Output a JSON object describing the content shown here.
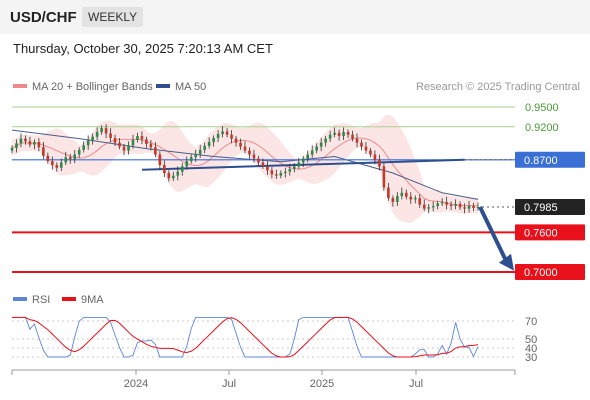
{
  "header": {
    "symbol": "USD/CHF",
    "timeframe": "WEEKLY",
    "timestamp": "Thursday, October 30, 2025 7:20:13 AM CET"
  },
  "legend": {
    "ma20": "MA 20 + Bollinger Bands",
    "ma50": "MA 50",
    "copyright": "Research © 2025 Trading Central",
    "rsi": "RSI",
    "ma9": "9MA"
  },
  "colors": {
    "ma20": "#f08a8a",
    "bands": "#fadcdc",
    "ma50": "#4a5c8a",
    "trend": "#2e4f8f",
    "support": "#e8101a",
    "resistance_green": "#a9d18e",
    "pivot_blue": "#3a6fd6",
    "rsi": "#5b86d8",
    "up": "#2a8a4a",
    "down": "#c0392b"
  },
  "chart_data": [
    {
      "type": "candlestick",
      "ylim": [
        0.68,
        0.99
      ],
      "x_ticks": [
        "2024",
        "Jul",
        "2025",
        "Jul"
      ],
      "levels": [
        {
          "value": 0.95,
          "label": "0.9500",
          "style": "green"
        },
        {
          "value": 0.92,
          "label": "0.9200",
          "style": "green"
        },
        {
          "value": 0.87,
          "label": "0.8700",
          "style": "blue"
        },
        {
          "value": 0.7985,
          "label": "0.7985",
          "style": "price"
        },
        {
          "value": 0.76,
          "label": "0.7600",
          "style": "red"
        },
        {
          "value": 0.7,
          "label": "0.7000",
          "style": "red"
        }
      ],
      "series": [
        {
          "name": "MA 20 + Bollinger Bands"
        },
        {
          "name": "MA 50"
        }
      ],
      "close": [
        0.888,
        0.895,
        0.902,
        0.898,
        0.893,
        0.897,
        0.889,
        0.876,
        0.868,
        0.862,
        0.858,
        0.866,
        0.874,
        0.871,
        0.878,
        0.885,
        0.892,
        0.899,
        0.905,
        0.912,
        0.918,
        0.91,
        0.903,
        0.896,
        0.89,
        0.884,
        0.892,
        0.9,
        0.906,
        0.901,
        0.894,
        0.889,
        0.878,
        0.862,
        0.85,
        0.842,
        0.846,
        0.852,
        0.86,
        0.868,
        0.874,
        0.879,
        0.885,
        0.891,
        0.897,
        0.903,
        0.909,
        0.913,
        0.908,
        0.902,
        0.896,
        0.89,
        0.884,
        0.878,
        0.872,
        0.866,
        0.86,
        0.854,
        0.848,
        0.846,
        0.85,
        0.852,
        0.856,
        0.86,
        0.866,
        0.872,
        0.878,
        0.884,
        0.89,
        0.896,
        0.902,
        0.908,
        0.911,
        0.906,
        0.912,
        0.908,
        0.902,
        0.896,
        0.89,
        0.884,
        0.878,
        0.87,
        0.86,
        0.828,
        0.812,
        0.806,
        0.815,
        0.82,
        0.814,
        0.81,
        0.812,
        0.802,
        0.796,
        0.798,
        0.8,
        0.804,
        0.806,
        0.802,
        0.8,
        0.803,
        0.798,
        0.796,
        0.8,
        0.797,
        0.7985
      ],
      "ma50_anchors": [
        [
          0,
          0.915
        ],
        [
          15,
          0.902
        ],
        [
          30,
          0.887
        ],
        [
          45,
          0.875
        ],
        [
          60,
          0.867
        ],
        [
          72,
          0.875
        ],
        [
          85,
          0.85
        ],
        [
          96,
          0.82
        ],
        [
          104,
          0.81
        ]
      ],
      "trendline": {
        "from": [
          0.855,
          0.866
        ],
        "to": [
          0.842,
          0.87
        ]
      }
    },
    {
      "type": "line",
      "title": "RSI",
      "ylim": [
        25,
        75
      ],
      "y_ticks": [
        70,
        50,
        40,
        30
      ],
      "series": [
        {
          "name": "RSI"
        },
        {
          "name": "9MA"
        }
      ]
    }
  ]
}
